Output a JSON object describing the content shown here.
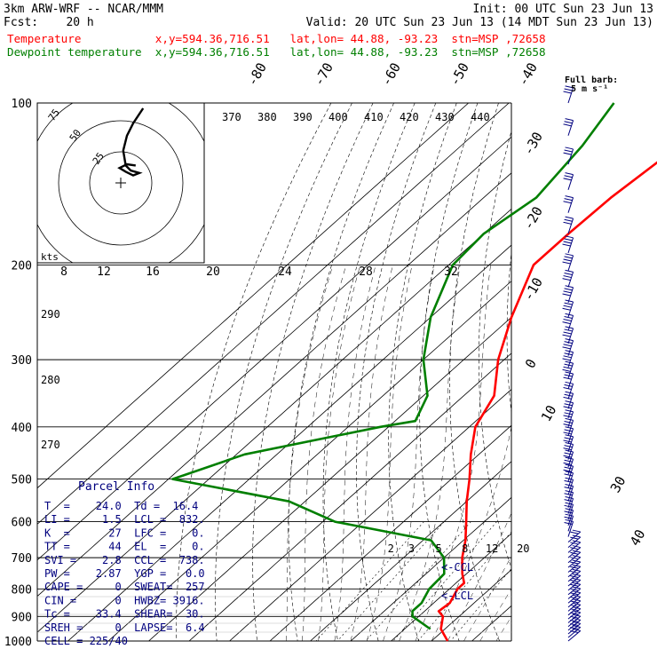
{
  "header": {
    "line1_left": "3km ARW-WRF -- NCAR/MMM",
    "line1_right": "Init: 00 UTC Sun 23 Jun 13",
    "line2_left": "Fcst:    20 h",
    "line2_right": "Valid: 20 UTC Sun 23 Jun 13 (14 MDT Sun 23 Jun 13)",
    "temp_line": "Temperature           x,y=594.36,716.51   lat,lon= 44.88, -93.23  stn=MSP ,72658",
    "dew_line": "Dewpoint temperature  x,y=594.36,716.51   lat,lon= 44.88, -93.23  stn=MSP ,72658"
  },
  "barb_legend": {
    "line1": "Full barb:",
    "line2": "5 m s⁻¹"
  },
  "colors": {
    "temperature": "#ff0000",
    "dewpoint": "#007f00",
    "parcel_text": "#00007f",
    "barbs": "#00007f",
    "axes": "#000000"
  },
  "chart_data": {
    "type": "line",
    "diagram": "skew-T log-P",
    "pressure_levels": [
      100,
      200,
      300,
      400,
      500,
      600,
      700,
      800,
      900,
      1000
    ],
    "pressure_labels": [
      "100",
      "200",
      "300",
      "400",
      "500",
      "600",
      "700",
      "800",
      "900",
      "1000"
    ],
    "isotherm_labels": [
      "-80",
      "-70",
      "-60",
      "-50",
      "-40",
      "-30",
      "-20",
      "-10",
      "0",
      "10",
      "30",
      "40"
    ],
    "theta_labels": [
      "370",
      "380",
      "390",
      "400",
      "410",
      "420",
      "430",
      "440"
    ],
    "theta_side_labels": [
      "290",
      "280",
      "270"
    ],
    "mixing_ratio_labels": [
      "2",
      "3",
      "5",
      "8",
      "12",
      "20"
    ],
    "series": [
      {
        "name": "Temperature",
        "pressure": [
          100,
          120,
          150,
          175,
          200,
          250,
          300,
          350,
          400,
          450,
          500,
          550,
          600,
          650,
          700,
          750,
          780,
          800,
          850,
          880,
          900,
          950,
          1000
        ],
        "temperature_c": [
          -57,
          -56,
          -58.5,
          -59,
          -59,
          -50,
          -41.5,
          -32.5,
          -28.5,
          -22,
          -15.5,
          -10,
          -4.5,
          0.5,
          4.5,
          9,
          12,
          12,
          14,
          13.5,
          16,
          19,
          24
        ]
      },
      {
        "name": "Dewpoint temperature",
        "pressure": [
          100,
          120,
          150,
          175,
          200,
          250,
          300,
          350,
          390,
          400,
          450,
          500,
          550,
          600,
          650,
          700,
          750,
          800,
          850,
          880,
          900,
          950
        ],
        "temperature_c": [
          -84,
          -80,
          -77,
          -80,
          -79,
          -70,
          -60,
          -49,
          -45,
          -52,
          -78,
          -89,
          -54,
          -37,
          -8,
          0,
          4.5,
          5,
          7,
          7,
          8.5,
          16.4
        ]
      }
    ],
    "hodograph": {
      "units": "kts",
      "ring_labels": [
        "25",
        "50",
        "75"
      ],
      "speed_labels": [
        "8",
        "12",
        "16",
        "20",
        "24",
        "28",
        "32"
      ],
      "trace": [
        [
          18,
          60
        ],
        [
          10,
          48
        ],
        [
          5,
          38
        ],
        [
          2,
          26
        ],
        [
          3,
          20
        ],
        [
          4,
          14
        ],
        [
          8,
          10
        ],
        [
          15,
          8
        ],
        [
          10,
          6
        ],
        [
          4,
          9
        ],
        [
          -1,
          12
        ],
        [
          5,
          15
        ],
        [
          12,
          14
        ]
      ]
    },
    "annotations": [
      "<-CCL",
      "<-LCL"
    ],
    "wind_barbs_pressure": [
      100,
      115,
      130,
      145,
      160,
      175,
      190,
      205,
      220,
      235,
      250,
      265,
      280,
      295,
      310,
      325,
      340,
      355,
      370,
      385,
      400,
      415,
      430,
      445,
      460,
      475,
      490,
      505,
      520,
      535,
      550,
      565,
      580,
      595,
      610,
      625,
      640,
      655,
      670,
      685,
      700,
      715,
      730,
      745,
      760,
      775,
      790,
      805,
      820,
      835,
      850,
      865,
      880,
      895,
      910,
      925,
      940,
      955,
      970,
      985,
      1000
    ],
    "wind_barbs_flags": [
      3,
      3,
      3,
      3,
      3,
      3,
      4,
      4,
      4,
      4,
      4,
      4,
      4,
      4,
      4,
      4,
      3,
      3,
      3,
      3,
      3,
      3,
      3,
      3,
      3,
      3,
      3,
      3,
      2,
      2,
      2,
      2,
      2,
      2,
      2,
      2,
      2,
      2,
      2,
      2,
      2,
      2,
      2,
      2,
      2,
      2,
      2,
      2,
      2,
      2,
      2,
      2,
      2,
      2,
      2,
      2,
      2,
      2,
      2,
      2,
      2
    ]
  },
  "parcel_info": {
    "title": "Parcel Info",
    "rows": [
      "T  =    24.0  Td =  16.4",
      "LI =     1.5  LCL =  832.",
      "K  =      27  LFC =    0.",
      "TT =      44  EL  =    0.",
      "SVI =    2.8  CCL =  738.",
      "PW =    2.87  YGP =   0.0",
      "CAPE =     0  SWEAT=  257",
      "CIN =      0  HWBZ= 3916.",
      "Tc =    33.4  SHEAR=  30.",
      "SREH =     0  LAPSE=  6.4",
      "CELL = 225/40"
    ]
  }
}
